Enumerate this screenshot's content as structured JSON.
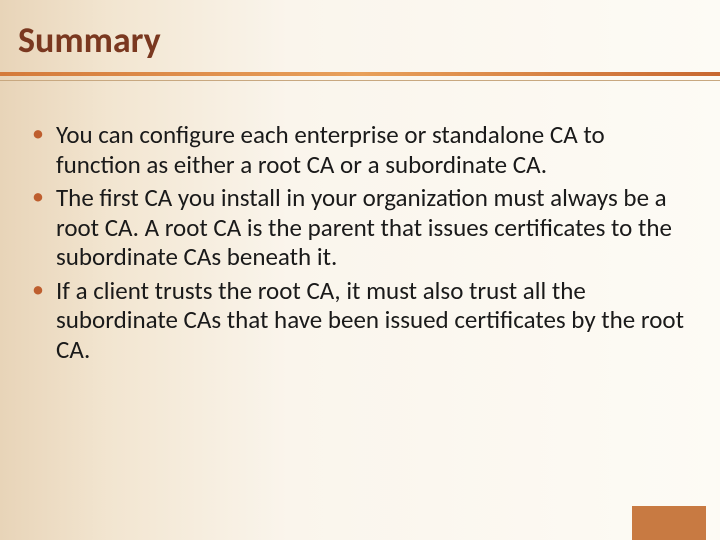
{
  "slide": {
    "title": "Summary",
    "bullets": [
      "You can configure each enterprise or standalone CA to function as either a root CA or a subordinate CA.",
      "The first CA you install in your organization must always be a root CA. A root CA is the parent that issues certificates to the subordinate CAs beneath it.",
      "If a client trusts the root CA, it must also trust all the subordinate CAs that have been issued certificates by the root CA."
    ]
  },
  "style": {
    "title_color": "#7a3820",
    "title_fontsize": 36,
    "body_fontsize": 25,
    "body_color": "#1a1a1a",
    "bullet_marker_color": "#be5e2e",
    "divider_gradient": [
      "#d47a3a",
      "#e8a05a",
      "#c86830"
    ],
    "background_gradient": [
      "#e8d4b8",
      "#f2e5d0",
      "#faf5ec",
      "#fdfbf5"
    ],
    "accent_block_color": "#c87a42",
    "accent_block_width": 74,
    "accent_block_height": 34
  }
}
